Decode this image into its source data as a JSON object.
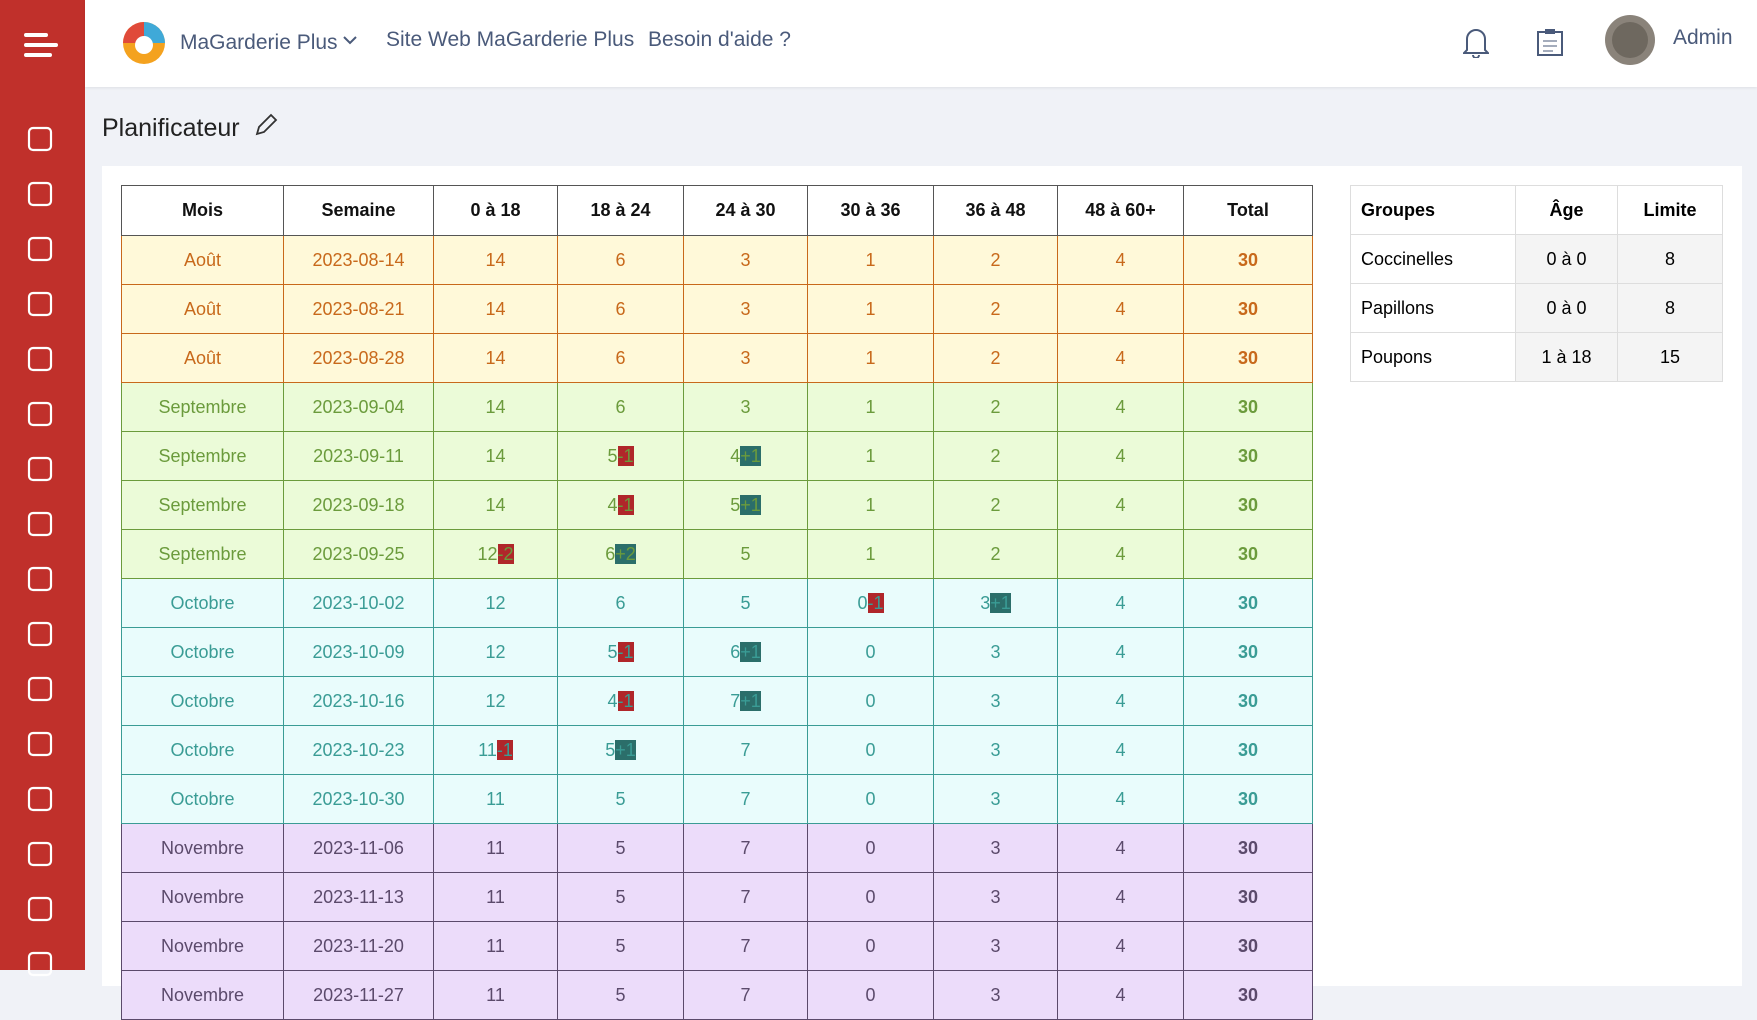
{
  "header": {
    "brand": "MaGarderie Plus",
    "links": [
      "Site Web MaGarderie Plus",
      "Besoin d'aide ?"
    ],
    "user": "Admin"
  },
  "page": {
    "title": "Planificateur"
  },
  "table": {
    "columns": [
      "Mois",
      "Semaine",
      "0 à 18",
      "18 à 24",
      "24 à 30",
      "30 à 36",
      "36 à 48",
      "48 à 60+",
      "Total"
    ],
    "rows": [
      {
        "month": "Août",
        "week": "2023-08-14",
        "cells": [
          {
            "value": "14"
          },
          {
            "value": "6"
          },
          {
            "value": "3"
          },
          {
            "value": "1"
          },
          {
            "value": "2"
          },
          {
            "value": "4"
          }
        ],
        "total": "30",
        "color": "#c8691b",
        "background": "#fff9d9"
      },
      {
        "month": "Août",
        "week": "2023-08-21",
        "cells": [
          {
            "value": "14"
          },
          {
            "value": "6"
          },
          {
            "value": "3"
          },
          {
            "value": "1"
          },
          {
            "value": "2"
          },
          {
            "value": "4"
          }
        ],
        "total": "30",
        "color": "#c8691b",
        "background": "#fff9d9"
      },
      {
        "month": "Août",
        "week": "2023-08-28",
        "cells": [
          {
            "value": "14"
          },
          {
            "value": "6"
          },
          {
            "value": "3"
          },
          {
            "value": "1"
          },
          {
            "value": "2"
          },
          {
            "value": "4"
          }
        ],
        "total": "30",
        "color": "#c8691b",
        "background": "#fff9d9"
      },
      {
        "month": "Septembre",
        "week": "2023-09-04",
        "cells": [
          {
            "value": "14"
          },
          {
            "value": "6"
          },
          {
            "value": "3"
          },
          {
            "value": "1"
          },
          {
            "value": "2"
          },
          {
            "value": "4"
          }
        ],
        "total": "30",
        "color": "#6b9b3c",
        "background": "#ebfbd8"
      },
      {
        "month": "Septembre",
        "week": "2023-09-11",
        "cells": [
          {
            "value": "14"
          },
          {
            "value": "5",
            "badge": "-1"
          },
          {
            "value": "4",
            "badge": "+1"
          },
          {
            "value": "1"
          },
          {
            "value": "2"
          },
          {
            "value": "4"
          }
        ],
        "total": "30",
        "color": "#6b9b3c",
        "background": "#ebfbd8"
      },
      {
        "month": "Septembre",
        "week": "2023-09-18",
        "cells": [
          {
            "value": "14"
          },
          {
            "value": "4",
            "badge": "-1"
          },
          {
            "value": "5",
            "badge": "+1"
          },
          {
            "value": "1"
          },
          {
            "value": "2"
          },
          {
            "value": "4"
          }
        ],
        "total": "30",
        "color": "#6b9b3c",
        "background": "#ebfbd8"
      },
      {
        "month": "Septembre",
        "week": "2023-09-25",
        "cells": [
          {
            "value": "12",
            "badge": "-2"
          },
          {
            "value": "6",
            "badge": "+2"
          },
          {
            "value": "5"
          },
          {
            "value": "1"
          },
          {
            "value": "2"
          },
          {
            "value": "4"
          }
        ],
        "total": "30",
        "color": "#6b9b3c",
        "background": "#ebfbd8"
      },
      {
        "month": "Octobre",
        "week": "2023-10-02",
        "cells": [
          {
            "value": "12"
          },
          {
            "value": "6"
          },
          {
            "value": "5"
          },
          {
            "value": "0",
            "badge": "-1"
          },
          {
            "value": "3",
            "badge": "+1"
          },
          {
            "value": "4"
          }
        ],
        "total": "30",
        "color": "#3a9c95",
        "background": "#e9fcfc"
      },
      {
        "month": "Octobre",
        "week": "2023-10-09",
        "cells": [
          {
            "value": "12"
          },
          {
            "value": "5",
            "badge": "-1"
          },
          {
            "value": "6",
            "badge": "+1"
          },
          {
            "value": "0"
          },
          {
            "value": "3"
          },
          {
            "value": "4"
          }
        ],
        "total": "30",
        "color": "#3a9c95",
        "background": "#e9fcfc"
      },
      {
        "month": "Octobre",
        "week": "2023-10-16",
        "cells": [
          {
            "value": "12"
          },
          {
            "value": "4",
            "badge": "-1"
          },
          {
            "value": "7",
            "badge": "+1"
          },
          {
            "value": "0"
          },
          {
            "value": "3"
          },
          {
            "value": "4"
          }
        ],
        "total": "30",
        "color": "#3a9c95",
        "background": "#e9fcfc"
      },
      {
        "month": "Octobre",
        "week": "2023-10-23",
        "cells": [
          {
            "value": "11",
            "badge": "-1"
          },
          {
            "value": "5",
            "badge": "+1"
          },
          {
            "value": "7"
          },
          {
            "value": "0"
          },
          {
            "value": "3"
          },
          {
            "value": "4"
          }
        ],
        "total": "30",
        "color": "#3a9c95",
        "background": "#e9fcfc"
      },
      {
        "month": "Octobre",
        "week": "2023-10-30",
        "cells": [
          {
            "value": "11"
          },
          {
            "value": "5"
          },
          {
            "value": "7"
          },
          {
            "value": "0"
          },
          {
            "value": "3"
          },
          {
            "value": "4"
          }
        ],
        "total": "30",
        "color": "#3a9c95",
        "background": "#e9fcfc"
      },
      {
        "month": "Novembre",
        "week": "2023-11-06",
        "cells": [
          {
            "value": "11"
          },
          {
            "value": "5"
          },
          {
            "value": "7"
          },
          {
            "value": "0"
          },
          {
            "value": "3"
          },
          {
            "value": "4"
          }
        ],
        "total": "30",
        "color": "#5b4a6b",
        "background": "#ecdcfa"
      },
      {
        "month": "Novembre",
        "week": "2023-11-13",
        "cells": [
          {
            "value": "11"
          },
          {
            "value": "5"
          },
          {
            "value": "7"
          },
          {
            "value": "0"
          },
          {
            "value": "3"
          },
          {
            "value": "4"
          }
        ],
        "total": "30",
        "color": "#5b4a6b",
        "background": "#ecdcfa"
      },
      {
        "month": "Novembre",
        "week": "2023-11-20",
        "cells": [
          {
            "value": "11"
          },
          {
            "value": "5"
          },
          {
            "value": "7"
          },
          {
            "value": "0"
          },
          {
            "value": "3"
          },
          {
            "value": "4"
          }
        ],
        "total": "30",
        "color": "#5b4a6b",
        "background": "#ecdcfa"
      },
      {
        "month": "Novembre",
        "week": "2023-11-27",
        "cells": [
          {
            "value": "11"
          },
          {
            "value": "5"
          },
          {
            "value": "7"
          },
          {
            "value": "0"
          },
          {
            "value": "3"
          },
          {
            "value": "4"
          }
        ],
        "total": "30",
        "color": "#5b4a6b",
        "background": "#ecdcfa"
      }
    ]
  },
  "groups": {
    "columns": [
      "Groupes",
      "Âge",
      "Limite"
    ],
    "rows": [
      [
        "Coccinelles",
        "0 à 0",
        "8"
      ],
      [
        "Papillons",
        "0 à 0",
        "8"
      ],
      [
        "Poupons",
        "1 à 18",
        "15"
      ]
    ]
  }
}
